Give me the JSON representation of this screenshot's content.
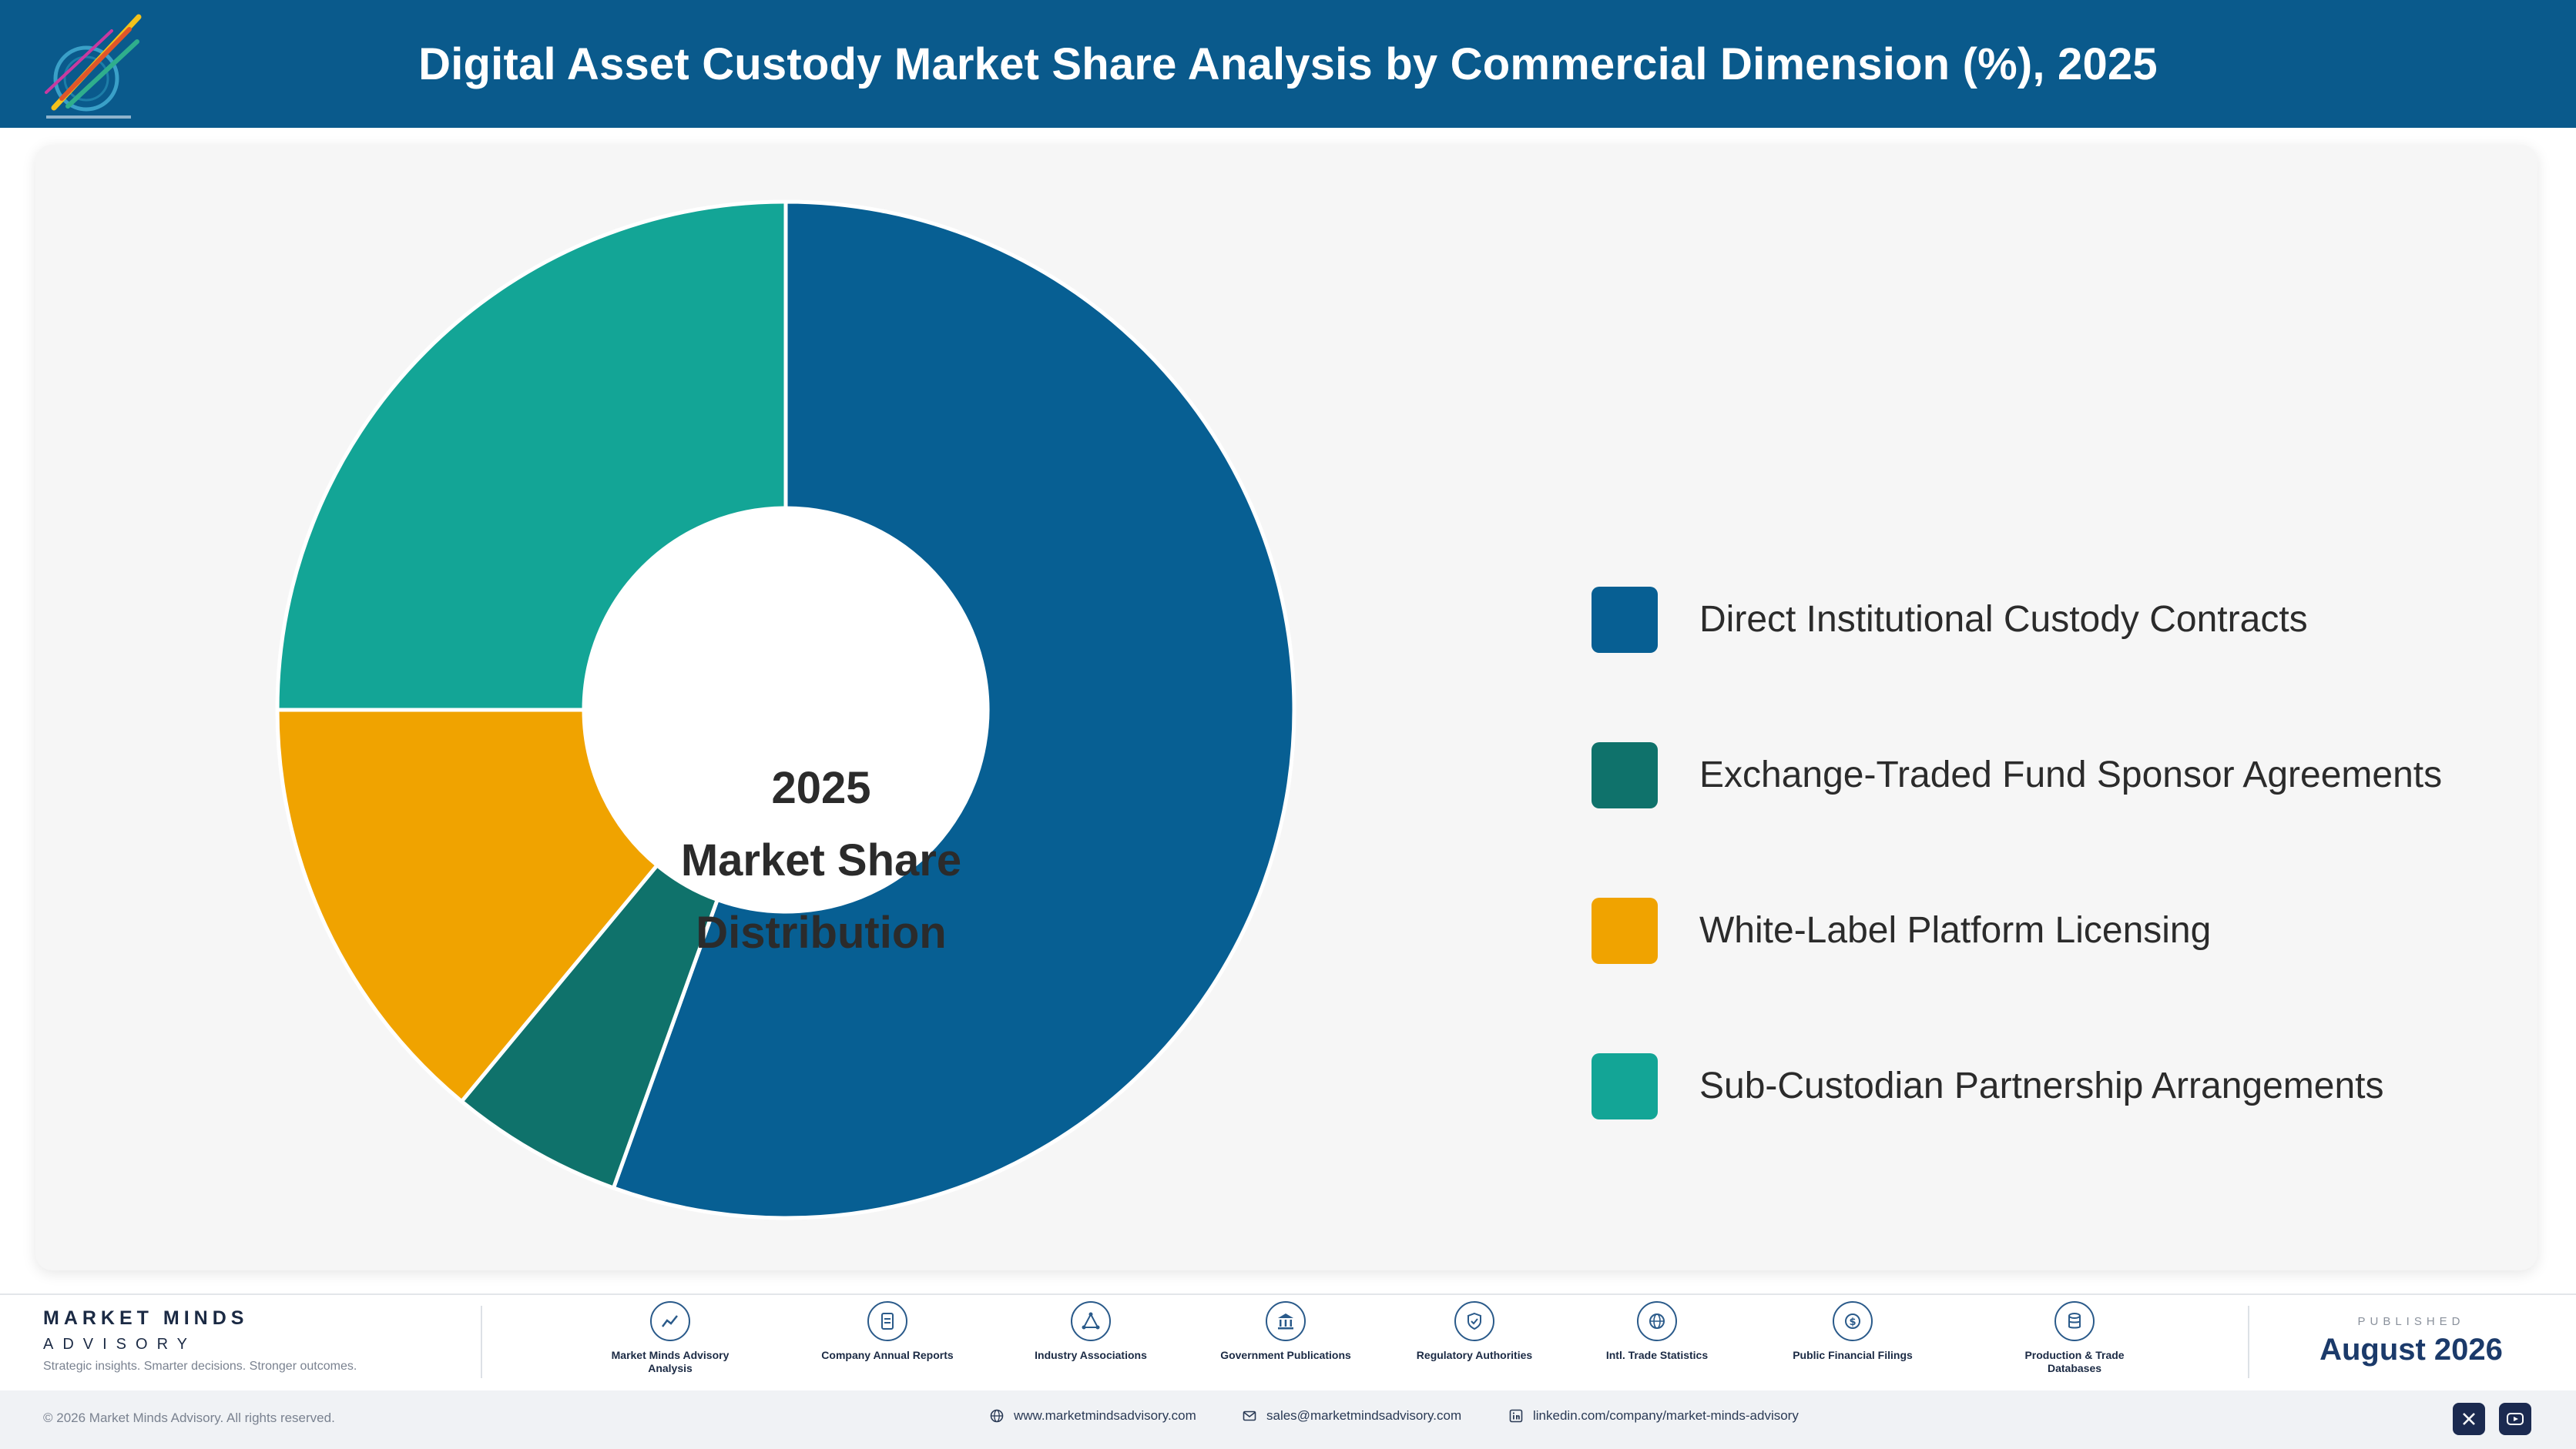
{
  "header": {
    "title": "Digital Asset Custody Market Share Analysis by Commercial Dimension (%), 2025"
  },
  "chart_data": {
    "type": "pie",
    "style": "donut",
    "title": "Digital Asset Custody Market Share Analysis by Commercial Dimension (%), 2025",
    "center_label": [
      "2025",
      "Market Share",
      "Distribution"
    ],
    "categories": [
      "Direct Institutional Custody Contracts",
      "Exchange-Traded Fund Sponsor Agreements",
      "White-Label Platform Licensing",
      "Sub-Custodian Partnership Arrangements"
    ],
    "values": [
      55.5,
      5.5,
      14.0,
      25.0
    ],
    "colors": [
      "#075f93",
      "#0f726b",
      "#f0a300",
      "#13a596"
    ],
    "start_angle": "12 o'clock",
    "direction": "clockwise",
    "legend_position": "right"
  },
  "footer": {
    "brand_name": "MARKET MINDS",
    "brand_sub": "ADVISORY",
    "tagline": "Strategic insights. Smarter decisions. Stronger outcomes.",
    "sources": [
      {
        "label": "Market Minds Advisory Analysis",
        "icon": "trend-chart-icon"
      },
      {
        "label": "Company Annual Reports",
        "icon": "document-icon"
      },
      {
        "label": "Industry Associations",
        "icon": "network-icon"
      },
      {
        "label": "Government Publications",
        "icon": "government-building-icon"
      },
      {
        "label": "Regulatory Authorities",
        "icon": "shield-check-icon"
      },
      {
        "label": "Intl. Trade Statistics",
        "icon": "globe-icon"
      },
      {
        "label": "Public Financial Filings",
        "icon": "dollar-coin-icon"
      },
      {
        "label": "Production & Trade Databases",
        "icon": "database-icon"
      }
    ],
    "published_label": "PUBLISHED",
    "published_date": "August 2026",
    "copyright": "© 2026 Market Minds Advisory. All rights reserved.",
    "website": "www.marketmindsadvisory.com",
    "email": "sales@marketmindsadvisory.com",
    "linkedin": "linkedin.com/company/market-minds-advisory",
    "social": [
      "x-icon",
      "youtube-icon"
    ]
  }
}
